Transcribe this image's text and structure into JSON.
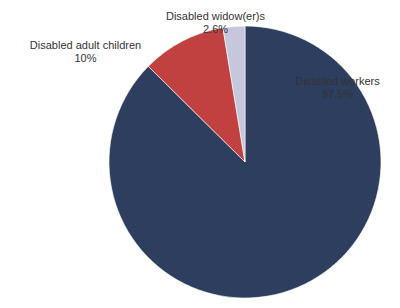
{
  "chart_data": {
    "type": "pie",
    "categories": [
      "Disabled workers",
      "Disabled adult children",
      "Disabled widow(er)s"
    ],
    "values": [
      87.5,
      10,
      2.6
    ],
    "value_labels": [
      "87.5%",
      "10%",
      "2.6%"
    ],
    "colors": [
      "#2e3e5e",
      "#c0413f",
      "#c6c6dc"
    ],
    "data_labels": true
  }
}
